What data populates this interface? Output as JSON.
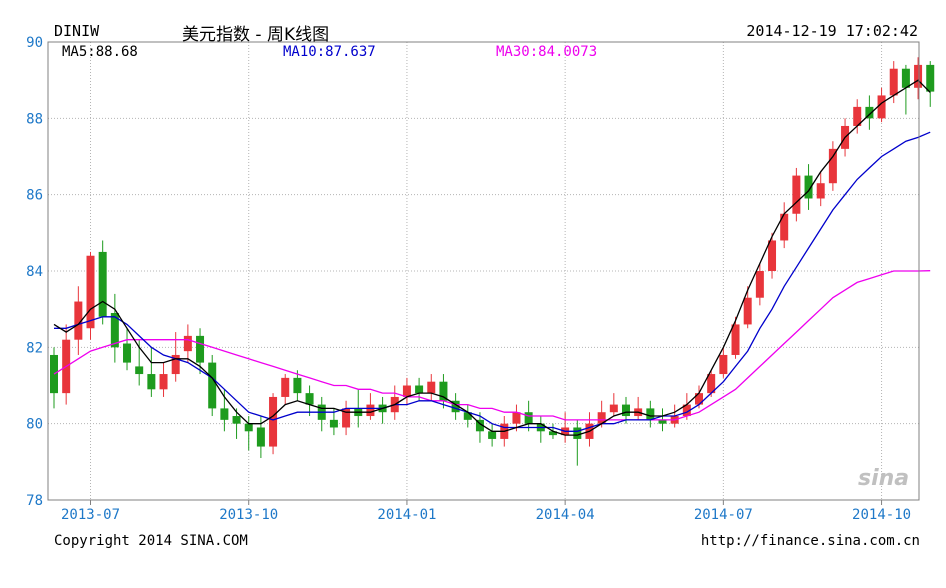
{
  "header": {
    "symbol": "DINIW",
    "name": "美元指数 - 周K线图",
    "datetime": "2014-12-19 17:02:42"
  },
  "ma_labels": {
    "ma5": "MA5:88.68",
    "ma10": "MA10:87.637",
    "ma30": "MA30:84.0073"
  },
  "footer": {
    "copyright": "Copyright 2014 SINA.COM",
    "url": "http://finance.sina.com.cn"
  },
  "watermark": "sina",
  "colors": {
    "up": "#e8353b",
    "down": "#1e9b1e",
    "ma5": "#000000",
    "ma10": "#0000cc",
    "ma30": "#ee00ee",
    "axis_label": "#1e78c8",
    "grid": "#b4b4b4"
  },
  "chart_data": {
    "type": "candlestick",
    "ylim": [
      78,
      90
    ],
    "yticks": [
      "78",
      "80",
      "82",
      "84",
      "86",
      "88",
      "90"
    ],
    "xticks": [
      {
        "label": "2013-07",
        "index": 3
      },
      {
        "label": "2013-10",
        "index": 16
      },
      {
        "label": "2014-01",
        "index": 29
      },
      {
        "label": "2014-04",
        "index": 42
      },
      {
        "label": "2014-07",
        "index": 55
      },
      {
        "label": "2014-10",
        "index": 68
      }
    ],
    "candles": [
      [
        81.8,
        80.8,
        82.0,
        80.4
      ],
      [
        80.8,
        82.2,
        82.6,
        80.5
      ],
      [
        82.2,
        83.2,
        83.6,
        81.8
      ],
      [
        82.5,
        84.4,
        84.5,
        82.2
      ],
      [
        84.5,
        82.8,
        84.8,
        82.6
      ],
      [
        82.9,
        82.0,
        83.4,
        81.6
      ],
      [
        82.1,
        81.6,
        82.5,
        81.4
      ],
      [
        81.5,
        81.3,
        82.2,
        81.0
      ],
      [
        81.3,
        80.9,
        82.0,
        80.7
      ],
      [
        80.9,
        81.3,
        81.6,
        80.7
      ],
      [
        81.3,
        81.8,
        82.4,
        81.1
      ],
      [
        81.9,
        82.3,
        82.6,
        81.6
      ],
      [
        82.3,
        81.6,
        82.5,
        81.3
      ],
      [
        81.6,
        80.4,
        81.8,
        80.2
      ],
      [
        80.4,
        80.1,
        80.9,
        79.8
      ],
      [
        80.2,
        80.0,
        80.4,
        79.6
      ],
      [
        80.0,
        79.8,
        80.2,
        79.3
      ],
      [
        79.9,
        79.4,
        80.2,
        79.1
      ],
      [
        79.4,
        80.7,
        80.8,
        79.2
      ],
      [
        80.7,
        81.2,
        81.3,
        80.5
      ],
      [
        81.2,
        80.8,
        81.4,
        80.6
      ],
      [
        80.8,
        80.5,
        81.0,
        80.2
      ],
      [
        80.5,
        80.1,
        80.7,
        79.8
      ],
      [
        80.1,
        79.9,
        80.4,
        79.7
      ],
      [
        79.9,
        80.4,
        80.6,
        79.7
      ],
      [
        80.4,
        80.2,
        80.9,
        79.9
      ],
      [
        80.2,
        80.5,
        80.8,
        80.1
      ],
      [
        80.5,
        80.3,
        80.7,
        80.0
      ],
      [
        80.3,
        80.7,
        81.0,
        80.1
      ],
      [
        80.7,
        81.0,
        81.2,
        80.5
      ],
      [
        81.0,
        80.8,
        81.2,
        80.6
      ],
      [
        80.8,
        81.1,
        81.3,
        80.6
      ],
      [
        81.1,
        80.6,
        81.3,
        80.4
      ],
      [
        80.6,
        80.3,
        80.8,
        80.1
      ],
      [
        80.3,
        80.1,
        80.5,
        79.9
      ],
      [
        80.1,
        79.8,
        80.3,
        79.5
      ],
      [
        79.8,
        79.6,
        80.0,
        79.4
      ],
      [
        79.6,
        80.0,
        80.2,
        79.4
      ],
      [
        80.0,
        80.3,
        80.5,
        79.8
      ],
      [
        80.3,
        80.0,
        80.6,
        79.8
      ],
      [
        80.0,
        79.8,
        80.2,
        79.5
      ],
      [
        79.8,
        79.7,
        80.0,
        79.6
      ],
      [
        79.7,
        79.9,
        80.3,
        79.5
      ],
      [
        79.9,
        79.6,
        80.1,
        78.9
      ],
      [
        79.6,
        80.0,
        80.3,
        79.4
      ],
      [
        80.0,
        80.3,
        80.6,
        79.9
      ],
      [
        80.3,
        80.5,
        80.8,
        80.2
      ],
      [
        80.5,
        80.2,
        80.7,
        80.0
      ],
      [
        80.2,
        80.4,
        80.7,
        80.1
      ],
      [
        80.4,
        80.1,
        80.6,
        79.9
      ],
      [
        80.1,
        80.0,
        80.4,
        79.8
      ],
      [
        80.0,
        80.2,
        80.5,
        79.9
      ],
      [
        80.2,
        80.5,
        80.8,
        80.1
      ],
      [
        80.5,
        80.8,
        81.0,
        80.4
      ],
      [
        80.8,
        81.3,
        81.4,
        80.7
      ],
      [
        81.3,
        81.8,
        82.0,
        81.2
      ],
      [
        81.8,
        82.6,
        82.8,
        81.7
      ],
      [
        82.6,
        83.3,
        83.6,
        82.5
      ],
      [
        83.3,
        84.0,
        84.2,
        83.1
      ],
      [
        84.0,
        84.8,
        85.0,
        83.8
      ],
      [
        84.8,
        85.5,
        85.8,
        84.6
      ],
      [
        85.5,
        86.5,
        86.7,
        85.3
      ],
      [
        86.5,
        85.9,
        86.8,
        85.6
      ],
      [
        85.9,
        86.3,
        86.6,
        85.7
      ],
      [
        86.3,
        87.2,
        87.4,
        86.1
      ],
      [
        87.2,
        87.8,
        88.0,
        87.0
      ],
      [
        87.8,
        88.3,
        88.5,
        87.6
      ],
      [
        88.3,
        88.0,
        88.6,
        87.7
      ],
      [
        88.0,
        88.6,
        88.8,
        87.9
      ],
      [
        88.6,
        89.3,
        89.5,
        88.4
      ],
      [
        89.3,
        88.8,
        89.4,
        88.1
      ],
      [
        88.8,
        89.4,
        89.6,
        88.5
      ],
      [
        89.4,
        88.7,
        89.5,
        88.3
      ]
    ],
    "ma5": [
      82.6,
      82.4,
      82.6,
      83.0,
      83.2,
      83.0,
      82.5,
      82.0,
      81.6,
      81.6,
      81.7,
      81.7,
      81.5,
      81.2,
      80.7,
      80.3,
      80.0,
      80.0,
      80.2,
      80.5,
      80.6,
      80.5,
      80.4,
      80.4,
      80.3,
      80.3,
      80.3,
      80.4,
      80.5,
      80.7,
      80.8,
      80.8,
      80.7,
      80.5,
      80.3,
      80.0,
      79.8,
      79.8,
      79.9,
      80.0,
      80.0,
      79.8,
      79.7,
      79.7,
      79.8,
      80.0,
      80.2,
      80.3,
      80.3,
      80.2,
      80.2,
      80.3,
      80.5,
      80.8,
      81.4,
      82.0,
      82.7,
      83.5,
      84.2,
      84.9,
      85.5,
      85.8,
      86.1,
      86.6,
      87.0,
      87.5,
      87.8,
      88.1,
      88.4,
      88.6,
      88.8,
      89.0,
      88.68
    ],
    "ma10": [
      82.5,
      82.5,
      82.6,
      82.7,
      82.8,
      82.8,
      82.6,
      82.3,
      82.0,
      81.8,
      81.7,
      81.6,
      81.4,
      81.2,
      80.9,
      80.6,
      80.3,
      80.2,
      80.1,
      80.2,
      80.3,
      80.3,
      80.3,
      80.3,
      80.4,
      80.4,
      80.4,
      80.4,
      80.5,
      80.5,
      80.6,
      80.6,
      80.5,
      80.4,
      80.3,
      80.2,
      80.0,
      79.9,
      79.9,
      79.9,
      79.9,
      79.9,
      79.8,
      79.8,
      79.9,
      80.0,
      80.0,
      80.1,
      80.1,
      80.1,
      80.2,
      80.2,
      80.3,
      80.5,
      80.8,
      81.1,
      81.5,
      81.9,
      82.5,
      83.0,
      83.6,
      84.1,
      84.6,
      85.1,
      85.6,
      86.0,
      86.4,
      86.7,
      87.0,
      87.2,
      87.4,
      87.5,
      87.637
    ],
    "ma30": [
      81.3,
      81.5,
      81.7,
      81.9,
      82.0,
      82.1,
      82.2,
      82.2,
      82.2,
      82.2,
      82.2,
      82.2,
      82.1,
      82.0,
      81.9,
      81.8,
      81.7,
      81.6,
      81.5,
      81.4,
      81.3,
      81.2,
      81.1,
      81.0,
      81.0,
      80.9,
      80.9,
      80.8,
      80.8,
      80.7,
      80.7,
      80.6,
      80.6,
      80.5,
      80.5,
      80.4,
      80.4,
      80.3,
      80.3,
      80.2,
      80.2,
      80.2,
      80.1,
      80.1,
      80.1,
      80.1,
      80.1,
      80.1,
      80.1,
      80.1,
      80.1,
      80.1,
      80.2,
      80.3,
      80.5,
      80.7,
      80.9,
      81.2,
      81.5,
      81.8,
      82.1,
      82.4,
      82.7,
      83.0,
      83.3,
      83.5,
      83.7,
      83.8,
      83.9,
      84.0,
      84.0,
      84.0,
      84.0073
    ]
  }
}
